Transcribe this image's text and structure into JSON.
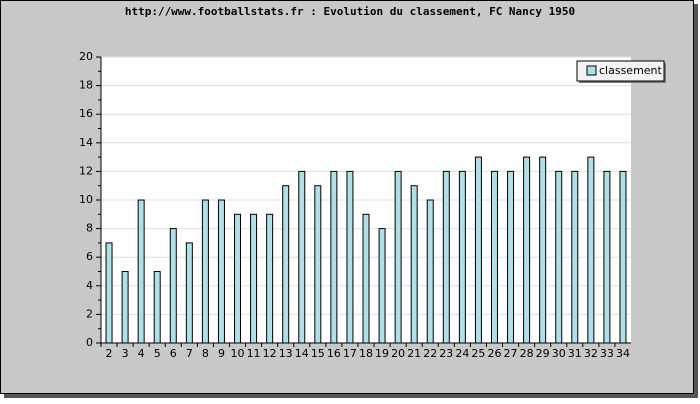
{
  "chart_data": {
    "type": "bar",
    "title": "http://www.footballstats.fr : Evolution du classement, FC Nancy 1950",
    "categories": [
      "2",
      "3",
      "4",
      "5",
      "6",
      "7",
      "8",
      "9",
      "10",
      "11",
      "12",
      "13",
      "14",
      "15",
      "16",
      "17",
      "18",
      "19",
      "20",
      "21",
      "22",
      "23",
      "24",
      "25",
      "26",
      "27",
      "28",
      "29",
      "30",
      "31",
      "32",
      "33",
      "34"
    ],
    "series": [
      {
        "name": "classement",
        "color": "#b0e0e6",
        "values": [
          7,
          5,
          10,
          5,
          8,
          7,
          10,
          10,
          9,
          9,
          9,
          11,
          12,
          11,
          12,
          12,
          9,
          8,
          12,
          11,
          10,
          12,
          12,
          13,
          12,
          12,
          13,
          13,
          12,
          12,
          13,
          12,
          12
        ]
      }
    ],
    "ylim": [
      0,
      20
    ],
    "yticks": [
      0,
      2,
      4,
      6,
      8,
      10,
      12,
      14,
      16,
      18,
      20
    ],
    "grid": true,
    "legend": "top-right"
  }
}
